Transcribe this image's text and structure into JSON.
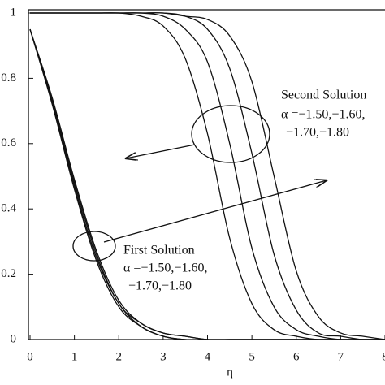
{
  "chart_data": {
    "type": "line",
    "x": [
      0,
      0.5,
      1,
      1.5,
      2,
      2.5,
      3,
      3.5,
      4,
      4.5,
      5,
      5.5,
      6,
      6.5,
      7,
      7.5,
      8
    ],
    "series": [
      {
        "color": "#111111",
        "values": [
          0.95,
          0.72,
          0.46,
          0.24,
          0.1,
          0.04,
          0.01,
          0,
          0,
          0,
          0,
          0,
          0,
          0,
          0,
          0,
          0
        ]
      },
      {
        "color": "#111111",
        "values": [
          0.95,
          0.73,
          0.47,
          0.25,
          0.11,
          0.04,
          0.01,
          0,
          0,
          0,
          0,
          0,
          0,
          0,
          0,
          0,
          0
        ]
      },
      {
        "color": "#111111",
        "values": [
          0.95,
          0.73,
          0.48,
          0.26,
          0.11,
          0.05,
          0.02,
          0.01,
          0,
          0,
          0,
          0,
          0,
          0,
          0,
          0,
          0
        ]
      },
      {
        "color": "#111111",
        "values": [
          0.95,
          0.74,
          0.49,
          0.27,
          0.12,
          0.05,
          0.02,
          0.01,
          0,
          0,
          0,
          0,
          0,
          0,
          0,
          0,
          0
        ]
      },
      {
        "color": "#111111",
        "values": [
          1,
          1,
          1,
          1,
          1,
          0.99,
          0.96,
          0.86,
          0.63,
          0.31,
          0.11,
          0.03,
          0.01,
          0,
          0,
          0,
          0
        ]
      },
      {
        "color": "#111111",
        "values": [
          1,
          1,
          1,
          1,
          1,
          1,
          0.99,
          0.95,
          0.85,
          0.6,
          0.28,
          0.1,
          0.03,
          0.01,
          0,
          0,
          0
        ]
      },
      {
        "color": "#111111",
        "values": [
          1,
          1,
          1,
          1,
          1,
          1,
          1,
          0.99,
          0.95,
          0.83,
          0.57,
          0.26,
          0.09,
          0.02,
          0.01,
          0,
          0
        ]
      },
      {
        "color": "#111111",
        "values": [
          1,
          1,
          1,
          1,
          1,
          1,
          1,
          0.99,
          0.98,
          0.93,
          0.79,
          0.5,
          0.21,
          0.07,
          0.02,
          0.01,
          0
        ]
      }
    ],
    "xlabel": "η",
    "xlim": [
      0,
      8
    ],
    "xticks": [
      0,
      1,
      2,
      3,
      4,
      5,
      6,
      7,
      8
    ],
    "ylim": [
      0,
      1
    ],
    "yticks": [
      0,
      {
        "value": 0.2,
        "label": "0.2"
      },
      {
        "value": 0.4,
        "label": "0.4"
      },
      {
        "value": 0.6,
        "label": "0.6"
      },
      {
        "value": 0.8,
        "label": "0.8"
      },
      1
    ],
    "annotations": [
      "Second Solution",
      "α =−1.50,−1.60,",
      "−1.70,−1.80",
      "First Solution",
      "α =−1.50,−1.60,",
      "−1.70,−1.80"
    ]
  }
}
